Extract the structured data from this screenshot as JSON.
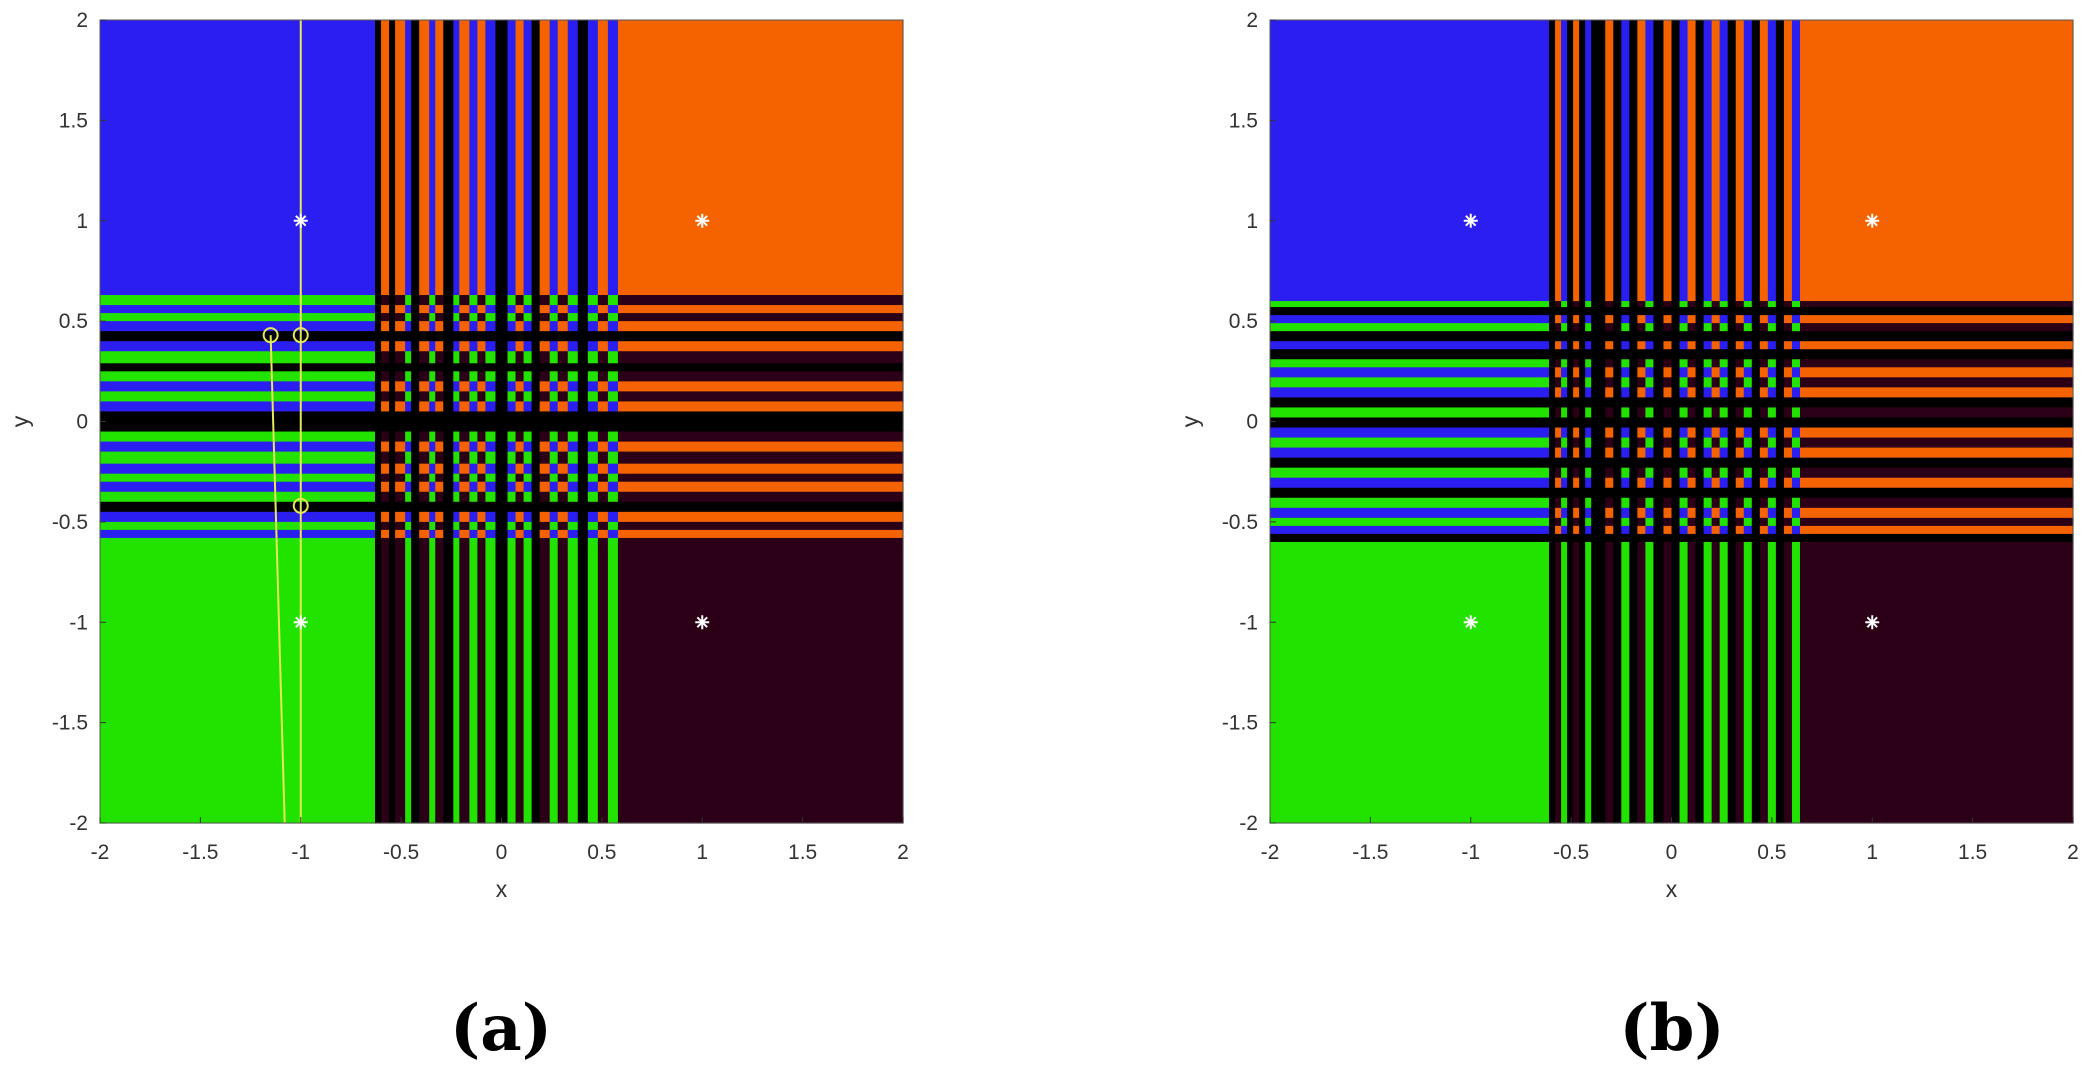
{
  "colors": {
    "blue": "#2a1ff0",
    "orange": "#f46300",
    "green": "#22e200",
    "maroon": "#2b0016",
    "black": "#000000",
    "trajectory": "#e5e85a",
    "marker": "#ffffff"
  },
  "chart_data": [
    {
      "type": "heatmap",
      "panel_label": "(a)",
      "title": "",
      "xlabel": "x",
      "ylabel": "y",
      "xlim": [
        -2,
        2
      ],
      "ylim": [
        -2,
        2
      ],
      "xticks": [
        -2,
        -1.5,
        -1,
        -0.5,
        0,
        0.5,
        1,
        1.5,
        2
      ],
      "yticks": [
        -2,
        -1.5,
        -1,
        -0.5,
        0,
        0.5,
        1,
        1.5,
        2
      ],
      "xtick_labels": [
        "-2",
        "-1.5",
        "-1",
        "-0.5",
        "0",
        "0.5",
        "1",
        "1.5",
        "2"
      ],
      "ytick_labels": [
        "-2",
        "-1.5",
        "-1",
        "-0.5",
        "0",
        "0.5",
        "1",
        "1.5",
        "2"
      ],
      "roots": [
        [
          -1,
          1
        ],
        [
          1,
          1
        ],
        [
          -1,
          -1
        ],
        [
          1,
          -1
        ]
      ],
      "basin_colors": {
        "x_neg_y_pos": "blue",
        "x_pos_y_pos": "orange",
        "x_neg_y_neg": "green",
        "x_pos_y_neg": "maroon",
        "diverged": "black"
      },
      "x_band_boundaries": [
        -0.63,
        0.63
      ],
      "y_band_boundaries": [
        -0.63,
        0.63
      ],
      "x_band_sign": [
        [
          -0.63,
          -0.6,
          "black"
        ],
        [
          -0.6,
          -0.56,
          "pos"
        ],
        [
          -0.56,
          -0.53,
          "black"
        ],
        [
          -0.53,
          -0.48,
          "pos"
        ],
        [
          -0.48,
          -0.45,
          "neg"
        ],
        [
          -0.45,
          -0.41,
          "black"
        ],
        [
          -0.41,
          -0.36,
          "pos"
        ],
        [
          -0.36,
          -0.33,
          "neg"
        ],
        [
          -0.33,
          -0.29,
          "pos"
        ],
        [
          -0.29,
          -0.24,
          "black"
        ],
        [
          -0.24,
          -0.21,
          "neg"
        ],
        [
          -0.21,
          -0.16,
          "pos"
        ],
        [
          -0.16,
          -0.12,
          "neg"
        ],
        [
          -0.12,
          -0.08,
          "pos"
        ],
        [
          -0.08,
          -0.03,
          "neg"
        ],
        [
          -0.03,
          0.03,
          "black"
        ],
        [
          0.03,
          0.07,
          "neg"
        ],
        [
          0.07,
          0.11,
          "pos"
        ],
        [
          0.11,
          0.15,
          "neg"
        ],
        [
          0.15,
          0.19,
          "black"
        ],
        [
          0.19,
          0.24,
          "pos"
        ],
        [
          0.24,
          0.28,
          "neg"
        ],
        [
          0.28,
          0.33,
          "pos"
        ],
        [
          0.33,
          0.38,
          "neg"
        ],
        [
          0.38,
          0.43,
          "black"
        ],
        [
          0.43,
          0.48,
          "neg"
        ],
        [
          0.48,
          0.53,
          "pos"
        ],
        [
          0.53,
          0.58,
          "neg"
        ],
        [
          0.58,
          0.63,
          "pos"
        ]
      ],
      "y_band_sign": [
        [
          0.58,
          0.63,
          "neg"
        ],
        [
          0.54,
          0.58,
          "pos"
        ],
        [
          0.5,
          0.54,
          "neg"
        ],
        [
          0.45,
          0.5,
          "pos"
        ],
        [
          0.4,
          0.45,
          "black"
        ],
        [
          0.35,
          0.4,
          "pos"
        ],
        [
          0.29,
          0.35,
          "neg"
        ],
        [
          0.25,
          0.29,
          "black"
        ],
        [
          0.2,
          0.25,
          "neg"
        ],
        [
          0.15,
          0.2,
          "pos"
        ],
        [
          0.1,
          0.15,
          "neg"
        ],
        [
          0.05,
          0.1,
          "pos"
        ],
        [
          0.0,
          0.05,
          "black"
        ],
        [
          -0.05,
          0.0,
          "black"
        ],
        [
          -0.1,
          -0.05,
          "neg"
        ],
        [
          -0.15,
          -0.1,
          "pos"
        ],
        [
          -0.21,
          -0.15,
          "neg"
        ],
        [
          -0.26,
          -0.21,
          "pos"
        ],
        [
          -0.3,
          -0.26,
          "neg"
        ],
        [
          -0.35,
          -0.3,
          "pos"
        ],
        [
          -0.4,
          -0.35,
          "neg"
        ],
        [
          -0.45,
          -0.4,
          "black"
        ],
        [
          -0.5,
          -0.45,
          "pos"
        ],
        [
          -0.54,
          -0.5,
          "neg"
        ],
        [
          -0.58,
          -0.54,
          "pos"
        ],
        [
          -0.63,
          -0.58,
          "neg"
        ]
      ],
      "trajectories": [
        {
          "name": "vertical-path",
          "points": [
            [
              -1,
              -2
            ],
            [
              -1,
              2
            ]
          ]
        },
        {
          "name": "slanted-path",
          "points": [
            [
              -1.08,
              -2
            ],
            [
              -1.12,
              -0.6
            ],
            [
              -1.15,
              0.43
            ]
          ]
        }
      ],
      "circle_markers": [
        [
          -1.15,
          0.43
        ],
        [
          -1,
          0.43
        ],
        [
          -1,
          -0.42
        ]
      ]
    },
    {
      "type": "heatmap",
      "panel_label": "(b)",
      "title": "",
      "xlabel": "x",
      "ylabel": "y",
      "xlim": [
        -2,
        2
      ],
      "ylim": [
        -2,
        2
      ],
      "xticks": [
        -2,
        -1.5,
        -1,
        -0.5,
        0,
        0.5,
        1,
        1.5,
        2
      ],
      "yticks": [
        -2,
        -1.5,
        -1,
        -0.5,
        0,
        0.5,
        1,
        1.5,
        2
      ],
      "xtick_labels": [
        "-2",
        "-1.5",
        "-1",
        "-0.5",
        "0",
        "0.5",
        "1",
        "1.5",
        "2"
      ],
      "ytick_labels": [
        "-2",
        "-1.5",
        "-1",
        "-0.5",
        "0",
        "0.5",
        "1",
        "1.5",
        "2"
      ],
      "roots": [
        [
          -1,
          1
        ],
        [
          1,
          1
        ],
        [
          -1,
          -1
        ],
        [
          1,
          -1
        ]
      ],
      "basin_colors": {
        "x_neg_y_pos": "blue",
        "x_pos_y_pos": "orange",
        "x_neg_y_neg": "green",
        "x_pos_y_neg": "maroon",
        "diverged": "black"
      },
      "x_band_boundaries": [
        -0.64,
        0.64
      ],
      "y_band_boundaries": [
        -0.64,
        0.64
      ],
      "x_band_sign": [
        [
          -0.64,
          -0.61,
          "neg"
        ],
        [
          -0.61,
          -0.58,
          "black"
        ],
        [
          -0.58,
          -0.55,
          "pos"
        ],
        [
          -0.55,
          -0.52,
          "neg"
        ],
        [
          -0.52,
          -0.49,
          "black"
        ],
        [
          -0.49,
          -0.46,
          "pos"
        ],
        [
          -0.46,
          -0.43,
          "black"
        ],
        [
          -0.43,
          -0.4,
          "neg"
        ],
        [
          -0.4,
          -0.33,
          "black"
        ],
        [
          -0.33,
          -0.29,
          "pos"
        ],
        [
          -0.29,
          -0.25,
          "black"
        ],
        [
          -0.25,
          -0.21,
          "neg"
        ],
        [
          -0.21,
          -0.17,
          "black"
        ],
        [
          -0.17,
          -0.13,
          "pos"
        ],
        [
          -0.13,
          -0.09,
          "neg"
        ],
        [
          -0.09,
          -0.04,
          "black"
        ],
        [
          -0.04,
          0.0,
          "pos"
        ],
        [
          0.0,
          0.04,
          "black"
        ],
        [
          0.04,
          0.08,
          "neg"
        ],
        [
          0.08,
          0.12,
          "pos"
        ],
        [
          0.12,
          0.16,
          "black"
        ],
        [
          0.16,
          0.2,
          "neg"
        ],
        [
          0.2,
          0.24,
          "pos"
        ],
        [
          0.24,
          0.28,
          "neg"
        ],
        [
          0.28,
          0.32,
          "black"
        ],
        [
          0.32,
          0.36,
          "pos"
        ],
        [
          0.36,
          0.4,
          "neg"
        ],
        [
          0.4,
          0.44,
          "black"
        ],
        [
          0.44,
          0.48,
          "pos"
        ],
        [
          0.48,
          0.52,
          "neg"
        ],
        [
          0.52,
          0.56,
          "black"
        ],
        [
          0.56,
          0.6,
          "pos"
        ],
        [
          0.6,
          0.64,
          "neg"
        ]
      ],
      "y_band_sign": [
        [
          0.6,
          0.64,
          "pos"
        ],
        [
          0.57,
          0.6,
          "neg"
        ],
        [
          0.53,
          0.57,
          "black"
        ],
        [
          0.49,
          0.53,
          "pos"
        ],
        [
          0.45,
          0.49,
          "neg"
        ],
        [
          0.4,
          0.45,
          "black"
        ],
        [
          0.36,
          0.4,
          "pos"
        ],
        [
          0.31,
          0.36,
          "black"
        ],
        [
          0.27,
          0.31,
          "neg"
        ],
        [
          0.22,
          0.27,
          "pos"
        ],
        [
          0.17,
          0.22,
          "neg"
        ],
        [
          0.12,
          0.17,
          "pos"
        ],
        [
          0.07,
          0.12,
          "black"
        ],
        [
          0.02,
          0.07,
          "neg"
        ],
        [
          -0.03,
          0.02,
          "black"
        ],
        [
          -0.08,
          -0.03,
          "pos"
        ],
        [
          -0.13,
          -0.08,
          "neg"
        ],
        [
          -0.18,
          -0.13,
          "pos"
        ],
        [
          -0.23,
          -0.18,
          "black"
        ],
        [
          -0.28,
          -0.23,
          "neg"
        ],
        [
          -0.33,
          -0.28,
          "pos"
        ],
        [
          -0.38,
          -0.33,
          "black"
        ],
        [
          -0.43,
          -0.38,
          "neg"
        ],
        [
          -0.48,
          -0.43,
          "pos"
        ],
        [
          -0.52,
          -0.48,
          "neg"
        ],
        [
          -0.56,
          -0.52,
          "pos"
        ],
        [
          -0.6,
          -0.56,
          "black"
        ],
        [
          -0.64,
          -0.6,
          "neg"
        ]
      ],
      "trajectories": [],
      "circle_markers": []
    }
  ]
}
